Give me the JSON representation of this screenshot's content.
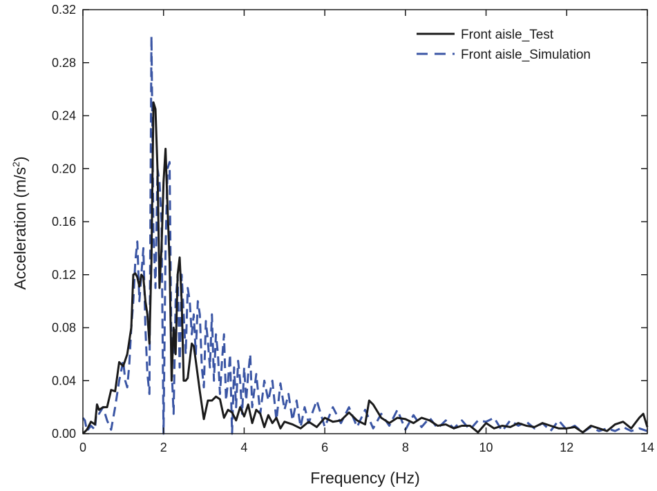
{
  "chart_data": {
    "type": "line",
    "title": "",
    "xlabel": "Frequency (Hz)",
    "ylabel_main": "Acceleration (m/s",
    "ylabel_sup": "2",
    "ylabel_tail": ")",
    "xlim": [
      0,
      14
    ],
    "ylim": [
      0,
      0.32
    ],
    "xticks": [
      0,
      2,
      4,
      6,
      8,
      10,
      12,
      14
    ],
    "xtick_labels": [
      "0",
      "2",
      "4",
      "6",
      "8",
      "10",
      "12",
      "14"
    ],
    "yticks": [
      0,
      0.04,
      0.08,
      0.12,
      0.16,
      0.2,
      0.24,
      0.28,
      0.32
    ],
    "ytick_labels": [
      "0.00",
      "0.04",
      "0.08",
      "0.12",
      "0.16",
      "0.20",
      "0.24",
      "0.28",
      "0.32"
    ],
    "grid": false,
    "legend_position": "top-right",
    "series": [
      {
        "name": "Front aisle_Test",
        "color": "#1a1a1a",
        "style": "solid",
        "x": [
          0.0,
          0.1,
          0.2,
          0.3,
          0.35,
          0.4,
          0.5,
          0.6,
          0.7,
          0.8,
          0.9,
          1.0,
          1.1,
          1.2,
          1.25,
          1.3,
          1.35,
          1.4,
          1.45,
          1.5,
          1.55,
          1.6,
          1.65,
          1.7,
          1.75,
          1.8,
          1.85,
          1.9,
          1.95,
          2.0,
          2.05,
          2.1,
          2.15,
          2.2,
          2.25,
          2.3,
          2.35,
          2.4,
          2.45,
          2.5,
          2.55,
          2.6,
          2.65,
          2.7,
          2.75,
          2.8,
          2.9,
          3.0,
          3.1,
          3.2,
          3.3,
          3.4,
          3.5,
          3.6,
          3.7,
          3.8,
          3.9,
          4.0,
          4.1,
          4.2,
          4.3,
          4.4,
          4.5,
          4.6,
          4.7,
          4.8,
          4.9,
          5.0,
          5.2,
          5.4,
          5.6,
          5.8,
          6.0,
          6.2,
          6.4,
          6.6,
          6.8,
          7.0,
          7.1,
          7.2,
          7.4,
          7.6,
          7.8,
          8.0,
          8.2,
          8.4,
          8.6,
          8.8,
          9.0,
          9.2,
          9.4,
          9.6,
          9.8,
          10.0,
          10.2,
          10.4,
          10.6,
          10.8,
          11.0,
          11.2,
          11.4,
          11.6,
          11.8,
          12.0,
          12.2,
          12.4,
          12.6,
          12.8,
          13.0,
          13.2,
          13.4,
          13.6,
          13.8,
          13.9,
          14.0
        ],
        "y": [
          0.0,
          0.003,
          0.009,
          0.007,
          0.022,
          0.018,
          0.02,
          0.02,
          0.033,
          0.032,
          0.054,
          0.051,
          0.06,
          0.08,
          0.12,
          0.121,
          0.118,
          0.111,
          0.12,
          0.118,
          0.1,
          0.09,
          0.068,
          0.13,
          0.25,
          0.245,
          0.2,
          0.11,
          0.14,
          0.19,
          0.215,
          0.17,
          0.13,
          0.04,
          0.08,
          0.06,
          0.12,
          0.133,
          0.1,
          0.04,
          0.04,
          0.042,
          0.055,
          0.068,
          0.066,
          0.055,
          0.032,
          0.011,
          0.025,
          0.025,
          0.028,
          0.026,
          0.012,
          0.018,
          0.016,
          0.01,
          0.02,
          0.013,
          0.022,
          0.008,
          0.018,
          0.015,
          0.005,
          0.014,
          0.008,
          0.012,
          0.004,
          0.009,
          0.007,
          0.004,
          0.009,
          0.005,
          0.012,
          0.009,
          0.01,
          0.016,
          0.01,
          0.007,
          0.025,
          0.022,
          0.012,
          0.008,
          0.012,
          0.011,
          0.008,
          0.012,
          0.01,
          0.006,
          0.007,
          0.004,
          0.006,
          0.006,
          0.001,
          0.008,
          0.004,
          0.006,
          0.005,
          0.008,
          0.006,
          0.005,
          0.008,
          0.006,
          0.004,
          0.004,
          0.005,
          0.001,
          0.006,
          0.004,
          0.002,
          0.007,
          0.009,
          0.004,
          0.012,
          0.015,
          0.005
        ]
      },
      {
        "name": "Front aisle_Simulation",
        "color": "#3a55a4",
        "style": "dashed",
        "x": [
          0.0,
          0.05,
          0.1,
          0.2,
          0.3,
          0.35,
          0.4,
          0.5,
          0.6,
          0.7,
          0.8,
          0.85,
          0.9,
          1.0,
          1.05,
          1.1,
          1.15,
          1.2,
          1.25,
          1.3,
          1.35,
          1.4,
          1.45,
          1.5,
          1.55,
          1.6,
          1.65,
          1.7,
          1.75,
          1.8,
          1.85,
          1.9,
          1.95,
          2.0,
          2.05,
          2.1,
          2.15,
          2.2,
          2.25,
          2.3,
          2.35,
          2.4,
          2.45,
          2.5,
          2.55,
          2.6,
          2.65,
          2.7,
          2.75,
          2.8,
          2.85,
          2.9,
          2.95,
          3.0,
          3.05,
          3.1,
          3.15,
          3.2,
          3.25,
          3.3,
          3.35,
          3.4,
          3.45,
          3.5,
          3.55,
          3.6,
          3.65,
          3.7,
          3.75,
          3.8,
          3.85,
          3.9,
          3.95,
          4.0,
          4.05,
          4.1,
          4.15,
          4.2,
          4.3,
          4.4,
          4.5,
          4.6,
          4.7,
          4.8,
          4.9,
          5.0,
          5.1,
          5.2,
          5.3,
          5.4,
          5.5,
          5.6,
          5.8,
          6.0,
          6.2,
          6.4,
          6.6,
          6.8,
          7.0,
          7.2,
          7.4,
          7.6,
          7.8,
          8.0,
          8.2,
          8.4,
          8.6,
          8.8,
          9.0,
          9.2,
          9.4,
          9.6,
          9.8,
          10.0,
          10.2,
          10.4,
          10.6,
          10.8,
          11.0,
          11.2,
          11.4,
          11.6,
          11.8,
          12.0,
          12.2,
          12.4,
          12.6,
          12.8,
          13.0,
          13.2,
          13.4,
          13.6,
          13.8,
          14.0
        ],
        "y": [
          0.012,
          0.01,
          0.002,
          0.006,
          0.003,
          0.022,
          0.015,
          0.02,
          0.01,
          0.003,
          0.02,
          0.03,
          0.04,
          0.055,
          0.04,
          0.035,
          0.052,
          0.08,
          0.1,
          0.13,
          0.145,
          0.1,
          0.12,
          0.14,
          0.08,
          0.045,
          0.03,
          0.3,
          0.15,
          0.11,
          0.2,
          0.19,
          0.16,
          0.0,
          0.14,
          0.2,
          0.205,
          0.05,
          0.015,
          0.1,
          0.12,
          0.05,
          0.12,
          0.09,
          0.06,
          0.11,
          0.1,
          0.075,
          0.09,
          0.06,
          0.1,
          0.09,
          0.05,
          0.035,
          0.085,
          0.07,
          0.05,
          0.09,
          0.04,
          0.075,
          0.06,
          0.03,
          0.055,
          0.075,
          0.025,
          0.04,
          0.06,
          0.0,
          0.05,
          0.02,
          0.055,
          0.04,
          0.015,
          0.05,
          0.025,
          0.045,
          0.06,
          0.02,
          0.045,
          0.015,
          0.04,
          0.025,
          0.04,
          0.01,
          0.038,
          0.018,
          0.03,
          0.01,
          0.025,
          0.005,
          0.02,
          0.008,
          0.025,
          0.005,
          0.02,
          0.008,
          0.02,
          0.005,
          0.018,
          0.004,
          0.015,
          0.006,
          0.018,
          0.003,
          0.014,
          0.005,
          0.012,
          0.004,
          0.01,
          0.004,
          0.01,
          0.003,
          0.01,
          0.009,
          0.012,
          0.002,
          0.01,
          0.006,
          0.009,
          0.004,
          0.008,
          0.002,
          0.01,
          0.003,
          0.006,
          0.001,
          0.005,
          0.002,
          0.004,
          0.002,
          0.005,
          0.002,
          0.004,
          0.002
        ]
      }
    ]
  }
}
